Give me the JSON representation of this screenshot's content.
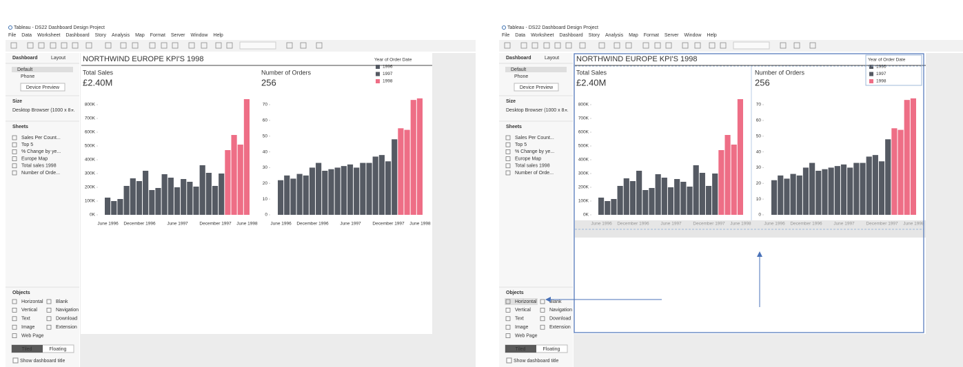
{
  "window_title": "Tableau - DS22 Dashboard Design Project",
  "menu": [
    "File",
    "Data",
    "Worksheet",
    "Dashboard",
    "Story",
    "Analysis",
    "Map",
    "Format",
    "Server",
    "Window",
    "Help"
  ],
  "sidebar": {
    "tabs": [
      "Dashboard",
      "Layout"
    ],
    "devices": [
      "Default",
      "Phone"
    ],
    "device_preview": "Device Preview",
    "size_label": "Size",
    "size_value": "Desktop Browser (1000 x 8...",
    "sheets_label": "Sheets",
    "sheets": [
      "Sales Per Count...",
      "Top 5",
      "% Change by ye...",
      "Europe Map",
      "Total sales 1998",
      "Number of Orde..."
    ],
    "objects_label": "Objects",
    "objects": [
      "Horizontal",
      "Blank",
      "Vertical",
      "Navigation",
      "Text",
      "Download",
      "Image",
      "Extension",
      "Web Page"
    ],
    "modes": [
      "Tiled",
      "Floating"
    ],
    "show_title": "Show dashboard title"
  },
  "dashboard": {
    "title": "NORTHWIND EUROPE KPI'S 1998",
    "legend_title": "Year of Order Date"
  },
  "chart_data": [
    {
      "type": "bar",
      "title": "Total Sales",
      "subtitle": "£2.40M",
      "categories": [
        "June 1996",
        null,
        null,
        null,
        null,
        "December 1996",
        null,
        null,
        null,
        null,
        null,
        "June 1997",
        null,
        null,
        null,
        null,
        null,
        "December 1997",
        null,
        null,
        null,
        null,
        "June 1998"
      ],
      "series": [
        {
          "name": "1996",
          "color": "#555a63",
          "values": [
            125000,
            100000,
            115000,
            210000,
            265000,
            245000,
            320000,
            null,
            null,
            null,
            null,
            null,
            null,
            null,
            null,
            null,
            null,
            null,
            null,
            null,
            null,
            null,
            null
          ]
        },
        {
          "name": "1997",
          "color": "#555a63",
          "values": [
            null,
            null,
            null,
            null,
            null,
            null,
            null,
            180000,
            195000,
            295000,
            270000,
            200000,
            260000,
            240000,
            205000,
            360000,
            305000,
            210000,
            300000,
            null,
            null,
            null,
            null
          ]
        },
        {
          "name": "1998",
          "color": "#ee6e86",
          "values": [
            null,
            null,
            null,
            null,
            null,
            null,
            null,
            null,
            null,
            null,
            null,
            null,
            null,
            null,
            null,
            null,
            null,
            null,
            null,
            470000,
            580000,
            510000,
            840000
          ]
        }
      ],
      "ylim": [
        0,
        850000
      ],
      "yticks": [
        {
          "value": 0,
          "label": "0K"
        },
        {
          "value": 100000,
          "label": "100K"
        },
        {
          "value": 200000,
          "label": "200K"
        },
        {
          "value": 300000,
          "label": "300K"
        },
        {
          "value": 400000,
          "label": "400K"
        },
        {
          "value": 500000,
          "label": "500K"
        },
        {
          "value": 600000,
          "label": "600K"
        },
        {
          "value": 700000,
          "label": "700K"
        },
        {
          "value": 800000,
          "label": "800K"
        }
      ]
    },
    {
      "type": "bar",
      "title": "Number of Orders",
      "subtitle": "256",
      "categories": [
        "June 1996",
        null,
        null,
        null,
        null,
        "December 1996",
        null,
        null,
        null,
        null,
        null,
        "June 1997",
        null,
        null,
        null,
        null,
        null,
        "December 1997",
        null,
        null,
        null,
        null,
        "June 1998"
      ],
      "series": [
        {
          "name": "1996",
          "color": "#555a63",
          "values": [
            22,
            25,
            23,
            26,
            25,
            30,
            33,
            null,
            null,
            null,
            null,
            null,
            null,
            null,
            null,
            null,
            null,
            null,
            null,
            null,
            null,
            null,
            null
          ]
        },
        {
          "name": "1997",
          "color": "#555a63",
          "values": [
            null,
            null,
            null,
            null,
            null,
            null,
            null,
            28,
            29,
            30,
            31,
            32,
            30,
            33,
            33,
            37,
            38,
            34,
            48,
            null,
            null,
            null,
            null
          ]
        },
        {
          "name": "1998",
          "color": "#ee6e86",
          "values": [
            null,
            null,
            null,
            null,
            null,
            null,
            null,
            null,
            null,
            null,
            null,
            null,
            null,
            null,
            null,
            null,
            null,
            null,
            null,
            55,
            54,
            73,
            74
          ]
        }
      ],
      "ylim": [
        0,
        75
      ],
      "yticks": [
        0,
        10,
        20,
        30,
        40,
        50,
        60,
        70
      ]
    }
  ]
}
